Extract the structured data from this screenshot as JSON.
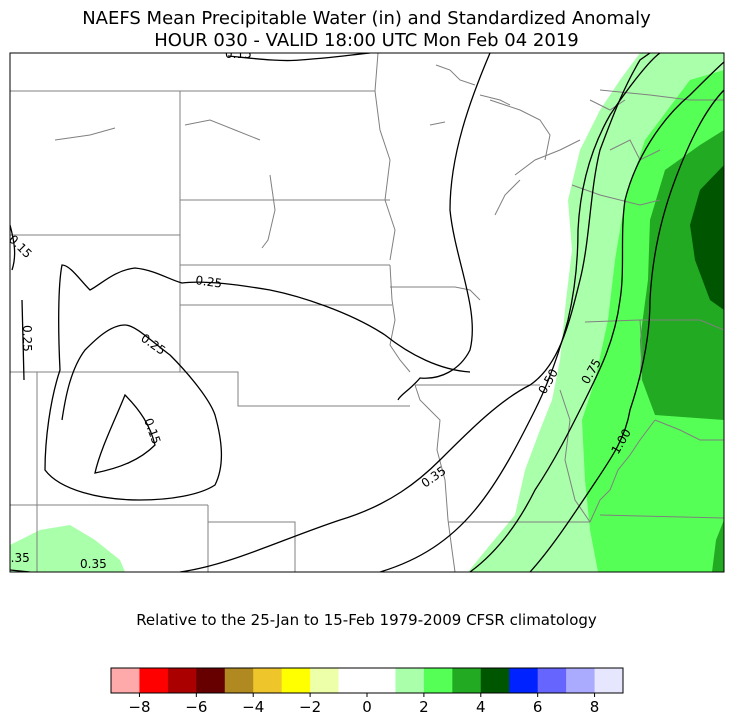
{
  "title": {
    "line1": "NAEFS Mean Precipitable Water (in) and Standardized Anomaly",
    "line2": "HOUR 030 - VALID 18:00 UTC Mon Feb 04 2019"
  },
  "caption": "Relative to the 25-Jan to 15-Feb 1979-2009 CFSR climatology",
  "contour_labels": [
    "0.15",
    "0.15",
    "0.15",
    "0.25",
    "0.25",
    "0.25",
    "0.35",
    "0.35",
    "0.35",
    "0.50",
    "0.75",
    "1.00"
  ],
  "colorbar": {
    "colors": [
      "#ffaaaa",
      "#ff0000",
      "#aa0000",
      "#660000",
      "#b08a20",
      "#eec52a",
      "#ffff00",
      "#eeffaa",
      "#ffffff",
      "#ffffff",
      "#aaffaa",
      "#55ff55",
      "#22aa22",
      "#005500",
      "#0022ff",
      "#6666ff",
      "#aaaaff",
      "#e6e6ff"
    ],
    "tick_labels": [
      "−8",
      "−6",
      "−4",
      "−2",
      "0",
      "2",
      "4",
      "6",
      "8"
    ]
  },
  "colors": {
    "anomaly_1_2": "#aaffaa",
    "anomaly_2_3": "#55ff55",
    "anomaly_3_4": "#22aa22",
    "anomaly_4_5": "#005500",
    "state_borders": "#808080",
    "contours": "#000000"
  }
}
